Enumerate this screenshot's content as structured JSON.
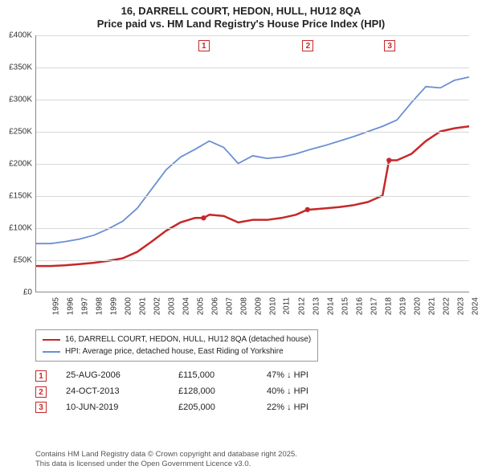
{
  "chart": {
    "title_line1": "16, DARRELL COURT, HEDON, HULL, HU12 8QA",
    "title_line2": "Price paid vs. HM Land Registry's House Price Index (HPI)",
    "background_color": "#ffffff",
    "grid_color": "#d8d8d8",
    "axis_color": "#888888",
    "y": {
      "min": 0,
      "max": 400,
      "step": 50,
      "labels": [
        "£0",
        "£50K",
        "£100K",
        "£150K",
        "£200K",
        "£250K",
        "£300K",
        "£350K",
        "£400K"
      ]
    },
    "x": {
      "min": 1995,
      "max": 2025,
      "labels": [
        "1995",
        "1996",
        "1997",
        "1998",
        "1999",
        "2000",
        "2001",
        "2002",
        "2003",
        "2004",
        "2005",
        "2006",
        "2007",
        "2008",
        "2009",
        "2010",
        "2011",
        "2012",
        "2013",
        "2014",
        "2015",
        "2016",
        "2017",
        "2018",
        "2019",
        "2020",
        "2021",
        "2022",
        "2023",
        "2024",
        "2025"
      ]
    },
    "series": [
      {
        "name": "16, DARRELL COURT, HEDON, HULL, HU12 8QA (detached house)",
        "color": "#c62828",
        "width": 2.5,
        "points": [
          [
            1995,
            40
          ],
          [
            1996,
            40
          ],
          [
            1997,
            41
          ],
          [
            1998,
            43
          ],
          [
            1999,
            45
          ],
          [
            2000,
            48
          ],
          [
            2001,
            52
          ],
          [
            2002,
            62
          ],
          [
            2003,
            78
          ],
          [
            2004,
            95
          ],
          [
            2005,
            108
          ],
          [
            2006,
            115
          ],
          [
            2006.6,
            115
          ],
          [
            2007,
            120
          ],
          [
            2008,
            118
          ],
          [
            2009,
            108
          ],
          [
            2010,
            112
          ],
          [
            2011,
            112
          ],
          [
            2012,
            115
          ],
          [
            2013,
            120
          ],
          [
            2013.8,
            128
          ],
          [
            2014,
            128
          ],
          [
            2015,
            130
          ],
          [
            2016,
            132
          ],
          [
            2017,
            135
          ],
          [
            2018,
            140
          ],
          [
            2019,
            150
          ],
          [
            2019.45,
            205
          ],
          [
            2020,
            205
          ],
          [
            2021,
            215
          ],
          [
            2022,
            235
          ],
          [
            2023,
            250
          ],
          [
            2024,
            255
          ],
          [
            2025,
            258
          ]
        ]
      },
      {
        "name": "HPI: Average price, detached house, East Riding of Yorkshire",
        "color": "#6b8fd4",
        "width": 1.8,
        "points": [
          [
            1995,
            75
          ],
          [
            1996,
            75
          ],
          [
            1997,
            78
          ],
          [
            1998,
            82
          ],
          [
            1999,
            88
          ],
          [
            2000,
            98
          ],
          [
            2001,
            110
          ],
          [
            2002,
            130
          ],
          [
            2003,
            160
          ],
          [
            2004,
            190
          ],
          [
            2005,
            210
          ],
          [
            2006,
            222
          ],
          [
            2007,
            235
          ],
          [
            2008,
            225
          ],
          [
            2009,
            200
          ],
          [
            2010,
            212
          ],
          [
            2011,
            208
          ],
          [
            2012,
            210
          ],
          [
            2013,
            215
          ],
          [
            2014,
            222
          ],
          [
            2015,
            228
          ],
          [
            2016,
            235
          ],
          [
            2017,
            242
          ],
          [
            2018,
            250
          ],
          [
            2019,
            258
          ],
          [
            2020,
            268
          ],
          [
            2021,
            295
          ],
          [
            2022,
            320
          ],
          [
            2023,
            318
          ],
          [
            2024,
            330
          ],
          [
            2025,
            335
          ]
        ]
      }
    ],
    "markers": [
      {
        "n": "1",
        "year": 2006.6
      },
      {
        "n": "2",
        "year": 2013.8
      },
      {
        "n": "3",
        "year": 2019.45
      }
    ]
  },
  "legend": {
    "rows": [
      {
        "color": "#c62828",
        "label": "16, DARRELL COURT, HEDON, HULL, HU12 8QA (detached house)"
      },
      {
        "color": "#6b8fd4",
        "label": "HPI: Average price, detached house, East Riding of Yorkshire"
      }
    ]
  },
  "sales": [
    {
      "n": "1",
      "date": "25-AUG-2006",
      "price": "£115,000",
      "delta": "47% ↓ HPI"
    },
    {
      "n": "2",
      "date": "24-OCT-2013",
      "price": "£128,000",
      "delta": "40% ↓ HPI"
    },
    {
      "n": "3",
      "date": "10-JUN-2019",
      "price": "£205,000",
      "delta": "22% ↓ HPI"
    }
  ],
  "footnote": {
    "line1": "Contains HM Land Registry data © Crown copyright and database right 2025.",
    "line2": "This data is licensed under the Open Government Licence v3.0."
  }
}
